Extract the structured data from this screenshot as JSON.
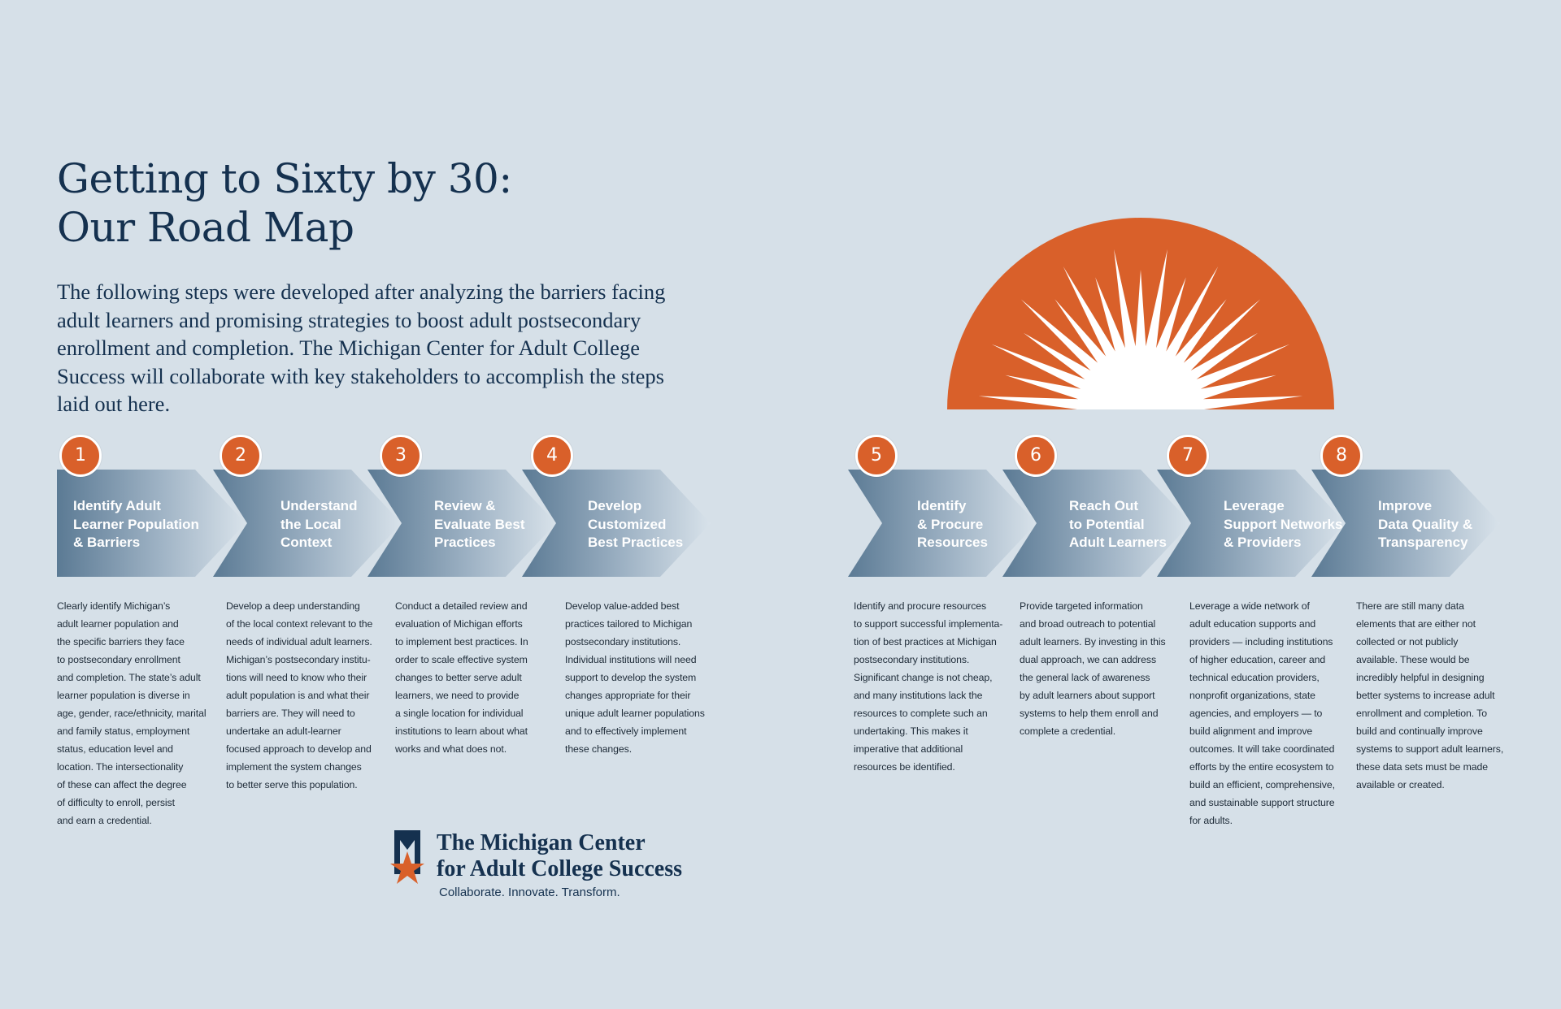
{
  "title": {
    "line1": "Getting to Sixty by 30:",
    "line2": "Our Road Map"
  },
  "intro": "The following steps were developed after analyzing the barriers facing adult learners and promising strategies to boost adult postsecondary enrollment and completion. The Michigan Center for Adult College Success will collaborate with key stakeholders to accomplish the steps laid out here.",
  "colors": {
    "background": "#d6e0e8",
    "navy": "#15314f",
    "accent_orange": "#d9602a",
    "arrow_dark": "#5f7d96",
    "arrow_light": "#d3dde6"
  },
  "sun_icon": "sunrise-icon",
  "steps": [
    {
      "number": "1",
      "title": "Identify Adult\nLearner Population\n& Barriers",
      "description": "Clearly identify Michigan’s\nadult learner population and\nthe specific barriers they face\nto postsecondary enrollment\nand completion. The state’s adult\nlearner population is diverse in\nage, gender, race/ethnicity, marital\nand family status, employment\nstatus, education level and\nlocation. The intersectionality\nof these can affect the degree\nof difficulty to enroll, persist\nand earn a credential."
    },
    {
      "number": "2",
      "title": "Understand\nthe Local\nContext",
      "description": "Develop a deep understanding\nof the local context relevant to the\nneeds of individual adult learners.\nMichigan’s postsecondary institu-\ntions will need to know who their\nadult population is and what their\nbarriers are. They will need to\nundertake an adult-learner\nfocused approach to develop and\nimplement the system changes\nto better serve this population."
    },
    {
      "number": "3",
      "title": "Review &\nEvaluate Best\nPractices",
      "description": "Conduct a detailed review and\nevaluation of Michigan efforts\nto implement best practices. In\norder to scale effective system\nchanges to better serve adult\nlearners, we need to provide\na single location for individual\ninstitutions to learn about what\nworks and what does not."
    },
    {
      "number": "4",
      "title": "Develop\nCustomized\nBest Practices",
      "description": "Develop value-added best\npractices tailored to Michigan\npostsecondary institutions.\nIndividual institutions will need\nsupport to develop the system\nchanges appropriate for their\nunique adult learner populations\nand to effectively implement\nthese changes."
    },
    {
      "number": "5",
      "title": "Identify\n& Procure\nResources",
      "description": "Identify and procure resources\nto support successful implementa-\ntion of best practices at Michigan\npostsecondary institutions.\nSignificant change is not cheap,\nand many institutions lack the\nresources to complete such an\nundertaking. This makes it\nimperative that additional\nresources be identified."
    },
    {
      "number": "6",
      "title": "Reach Out\nto Potential\nAdult Learners",
      "description": "Provide targeted information\nand broad outreach to potential\nadult learners. By investing in this\ndual approach, we can address\nthe general lack of awareness\nby adult learners about support\nsystems to help them enroll and\ncomplete a credential."
    },
    {
      "number": "7",
      "title": "Leverage\nSupport Networks\n& Providers",
      "description": "Leverage a wide network of\nadult education supports and\nproviders — including institutions\nof higher education, career and\ntechnical education providers,\nnonprofit organizations, state\nagencies, and employers — to\nbuild alignment and improve\noutcomes. It will take coordinated\nefforts by the entire ecosystem to\nbuild an efficient, comprehensive,\nand sustainable support structure\nfor adults."
    },
    {
      "number": "8",
      "title": "Improve\nData Quality &\nTransparency",
      "description": "There are still many data\nelements that are either not\ncollected or not publicly\navailable. These would be\nincredibly helpful in designing\nbetter systems to increase adult\nenrollment and completion. To\nbuild and continually improve\nsystems to support adult learners,\nthese data sets must be made\navailable or created."
    }
  ],
  "logo": {
    "name": "The Michigan Center\nfor Adult College Success",
    "tagline": "Collaborate. Innovate. Transform.",
    "icon": "star-logo-icon"
  }
}
